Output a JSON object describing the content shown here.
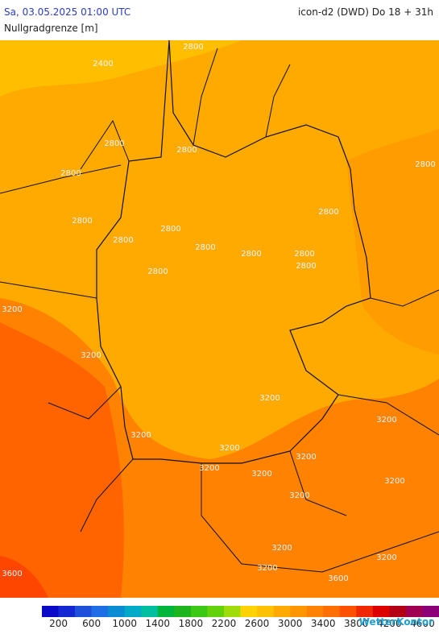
{
  "header": {
    "datetime": "Sa, 03.05.2025 01:00 UTC",
    "model": "icon-d2 (DWD) Do 18 + 31h",
    "subtitle": "Nullgradgrenze [m]"
  },
  "map": {
    "contour_labels": [
      2400,
      2800,
      2800,
      2800,
      2800,
      2800,
      2800,
      2800,
      2800,
      2800,
      2800,
      2800,
      2800,
      2800,
      2800,
      3200,
      3200,
      3200,
      3200,
      3200,
      3200,
      3200,
      3200,
      3200,
      3200,
      3200,
      3200,
      3200,
      3200,
      3600,
      3600
    ]
  },
  "colorbar": {
    "colors": [
      "#0a0ac8",
      "#1428d2",
      "#1e50dc",
      "#1e6ee6",
      "#0a8cd2",
      "#00aac8",
      "#00bea0",
      "#00b43c",
      "#1eb41e",
      "#3cc814",
      "#64d20a",
      "#a0dc0a",
      "#ffd200",
      "#ffc000",
      "#ffaa00",
      "#ff9600",
      "#ff8200",
      "#ff6e00",
      "#ff5000",
      "#f02800",
      "#dc0000",
      "#b40014",
      "#a00050",
      "#8c0078"
    ],
    "labels": [
      200,
      600,
      1000,
      1400,
      1800,
      2200,
      2600,
      3000,
      3400,
      3800,
      4200,
      4600
    ]
  },
  "logo": "WetterKontor"
}
